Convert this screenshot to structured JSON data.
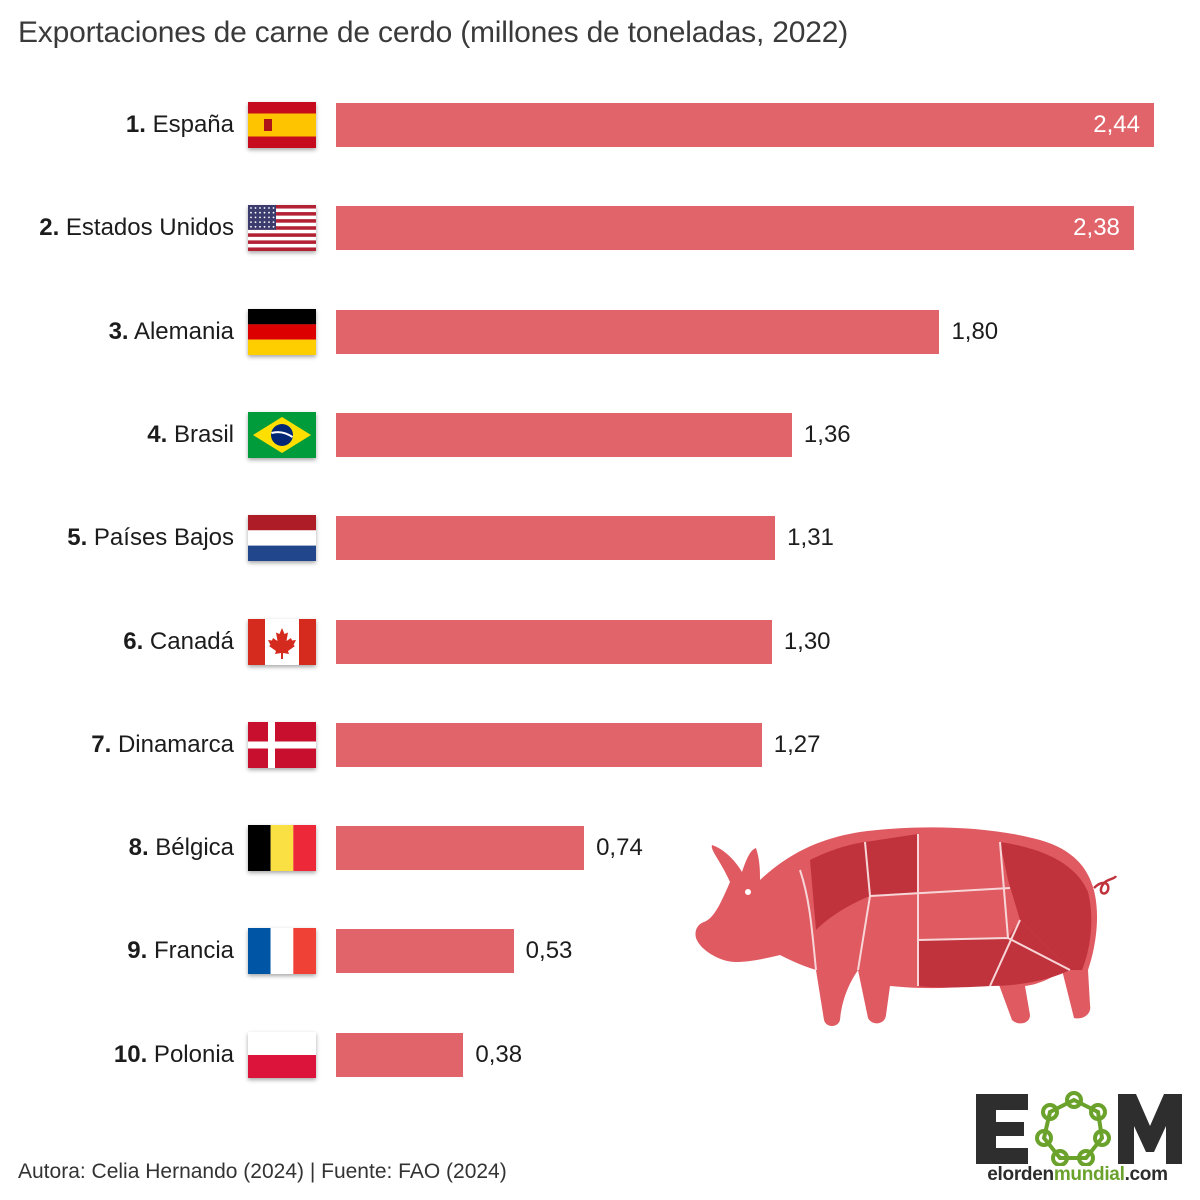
{
  "title": "Exportaciones de carne de cerdo (millones de toneladas, 2022)",
  "chart_data": {
    "type": "bar",
    "orientation": "horizontal",
    "title": "Exportaciones de carne de cerdo (millones de toneladas, 2022)",
    "xlim": [
      0,
      2.44
    ],
    "bar_color": "#e0646a",
    "rows": [
      {
        "rank": "1.",
        "country": "España",
        "value": 2.44,
        "label": "2,44",
        "flag": "spain-flag"
      },
      {
        "rank": "2.",
        "country": "Estados Unidos",
        "value": 2.38,
        "label": "2,38",
        "flag": "usa-flag"
      },
      {
        "rank": "3.",
        "country": "Alemania",
        "value": 1.8,
        "label": "1,80",
        "flag": "germany-flag"
      },
      {
        "rank": "4.",
        "country": "Brasil",
        "value": 1.36,
        "label": "1,36",
        "flag": "brazil-flag"
      },
      {
        "rank": "5.",
        "country": "Países Bajos",
        "value": 1.31,
        "label": "1,31",
        "flag": "netherlands-flag"
      },
      {
        "rank": "6.",
        "country": "Canadá",
        "value": 1.3,
        "label": "1,30",
        "flag": "canada-flag"
      },
      {
        "rank": "7.",
        "country": "Dinamarca",
        "value": 1.27,
        "label": "1,27",
        "flag": "denmark-flag"
      },
      {
        "rank": "8.",
        "country": "Bélgica",
        "value": 0.74,
        "label": "0,74",
        "flag": "belgium-flag"
      },
      {
        "rank": "9.",
        "country": "Francia",
        "value": 0.53,
        "label": "0,53",
        "flag": "france-flag"
      },
      {
        "rank": "10.",
        "country": "Polonia",
        "value": 0.38,
        "label": "0,38",
        "flag": "poland-flag"
      }
    ]
  },
  "illustration": "pig-cuts-icon",
  "source": "Autora: Celia Hernando (2024) | Fuente: FAO (2024)",
  "logo": {
    "letters": "EOM",
    "url_part1": "elorden",
    "url_part2": "mundial",
    "url_part3": ".com"
  },
  "colors": {
    "bar": "#e0646a",
    "pig_light": "#e05a62",
    "pig_dark": "#c0333d",
    "logo_green": "#6aa22c"
  }
}
